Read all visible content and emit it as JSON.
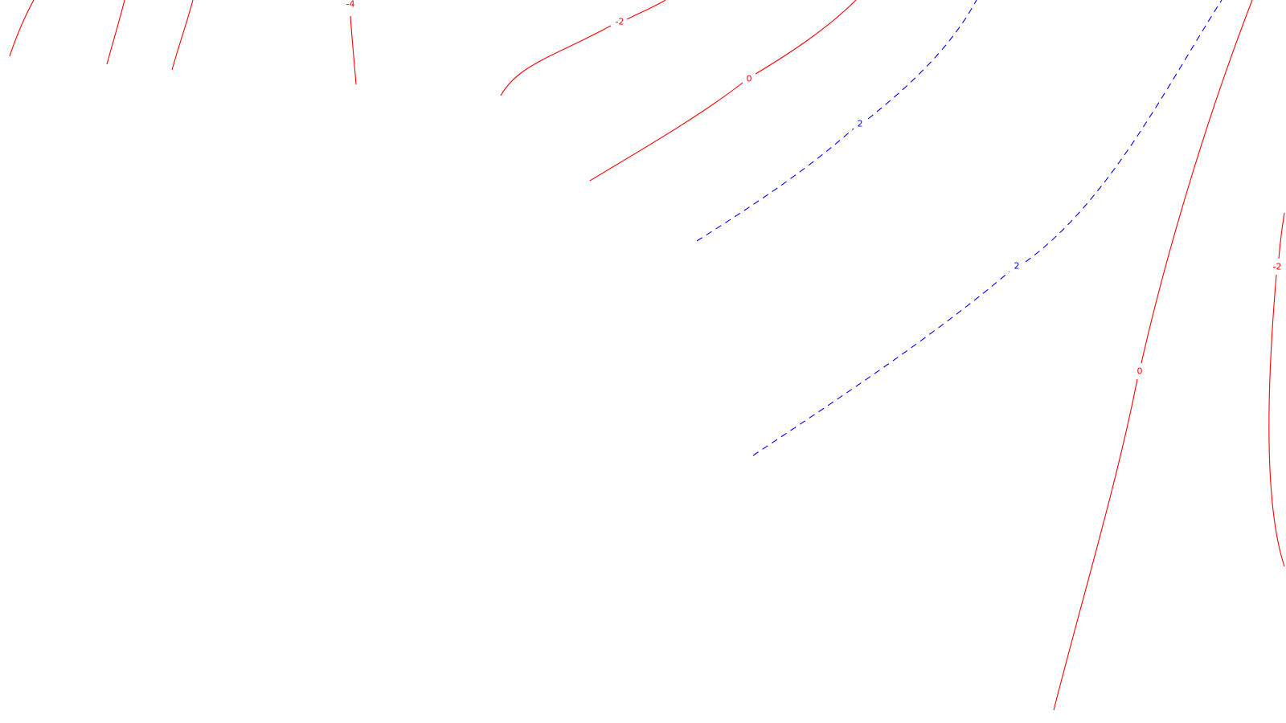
{
  "colors": {
    "background": "#ffffff",
    "positive": "#ff0000",
    "negative": "#0000ff"
  },
  "contours": [
    {
      "id": "neg4-a",
      "value": "-4",
      "label": "",
      "style": "solid"
    },
    {
      "id": "neg4-b",
      "value": "-4",
      "label": "",
      "style": "solid"
    },
    {
      "id": "neg4-c",
      "value": "-4",
      "label": "",
      "style": "solid"
    },
    {
      "id": "neg4-d",
      "value": "-4",
      "label": "-4",
      "style": "solid"
    },
    {
      "id": "neg2-top",
      "value": "-2",
      "label": "-2",
      "style": "solid"
    },
    {
      "id": "zero-upper",
      "value": "0",
      "label": "0",
      "style": "solid"
    },
    {
      "id": "two-upper",
      "value": "2",
      "label": "2",
      "style": "dashed"
    },
    {
      "id": "two-lower",
      "value": "2",
      "label": "2",
      "style": "dashed"
    },
    {
      "id": "zero-right",
      "value": "0",
      "label": "0",
      "style": "solid"
    },
    {
      "id": "neg2-right",
      "value": "-2",
      "label": "-2",
      "style": "solid"
    }
  ]
}
